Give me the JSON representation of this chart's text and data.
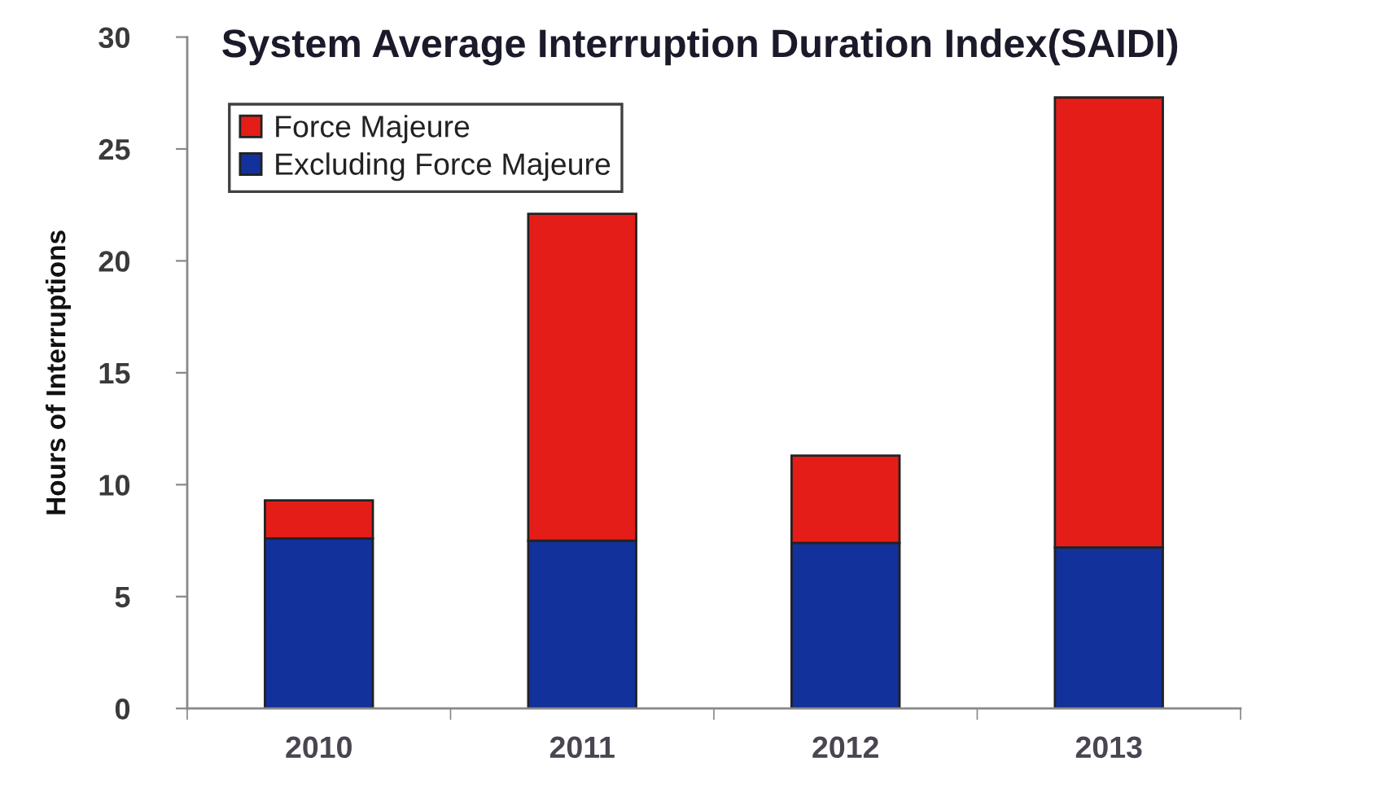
{
  "chart_data": {
    "type": "bar",
    "title": "System Average Interruption Duration Index(SAIDI)",
    "ylabel": "Hours of Interruptions",
    "categories": [
      "2010",
      "2011",
      "2012",
      "2013"
    ],
    "stacked": true,
    "series": [
      {
        "name": "Excluding Force Majeure",
        "color": "#12319a",
        "values": [
          7.6,
          7.5,
          7.4,
          7.2
        ]
      },
      {
        "name": "Force Majeure",
        "color": "#e41d18",
        "values": [
          1.7,
          14.6,
          3.9,
          20.1
        ]
      }
    ],
    "ylim": [
      0,
      30
    ],
    "yticks": [
      0,
      5,
      10,
      15,
      20,
      25,
      30
    ],
    "grid": false,
    "legend": "top left"
  }
}
